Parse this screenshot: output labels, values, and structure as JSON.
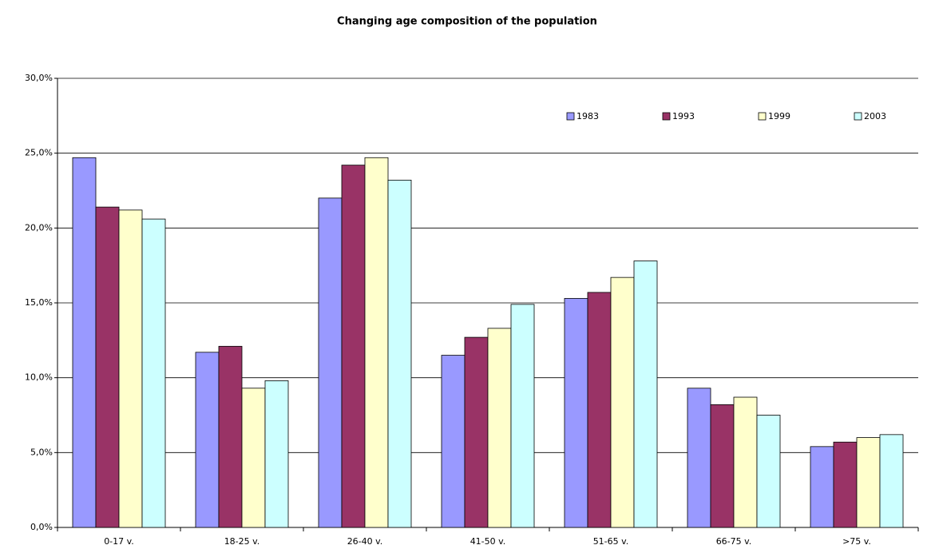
{
  "chart_data": {
    "type": "bar",
    "title": "Changing age composition of the population",
    "categories": [
      "0-17 v.",
      "18-25 v.",
      "26-40 v.",
      "41-50 v.",
      "51-65 v.",
      "66-75 v.",
      ">75 v."
    ],
    "series": [
      {
        "name": "1983",
        "color": "#9999ff",
        "values": [
          24.7,
          11.7,
          22.0,
          11.5,
          15.3,
          9.3,
          5.4
        ]
      },
      {
        "name": "1993",
        "color": "#993366",
        "values": [
          21.4,
          12.1,
          24.2,
          12.7,
          15.7,
          8.2,
          5.7
        ]
      },
      {
        "name": "1999",
        "color": "#ffffcc",
        "values": [
          21.2,
          9.3,
          24.7,
          13.3,
          16.7,
          8.7,
          6.0
        ]
      },
      {
        "name": "2003",
        "color": "#ccffff",
        "values": [
          20.6,
          9.8,
          23.2,
          14.9,
          17.8,
          7.5,
          6.2
        ]
      }
    ],
    "ylim": [
      0,
      30
    ],
    "yticks": [
      {
        "value": 0,
        "label": "0,0%"
      },
      {
        "value": 5,
        "label": "5,0%"
      },
      {
        "value": 10,
        "label": "10,0%"
      },
      {
        "value": 15,
        "label": "15,0%"
      },
      {
        "value": 20,
        "label": "20,0%"
      },
      {
        "value": 25,
        "label": "25,0%"
      },
      {
        "value": 30,
        "label": "30,0%"
      }
    ],
    "grid": true,
    "legend": "top-right"
  }
}
